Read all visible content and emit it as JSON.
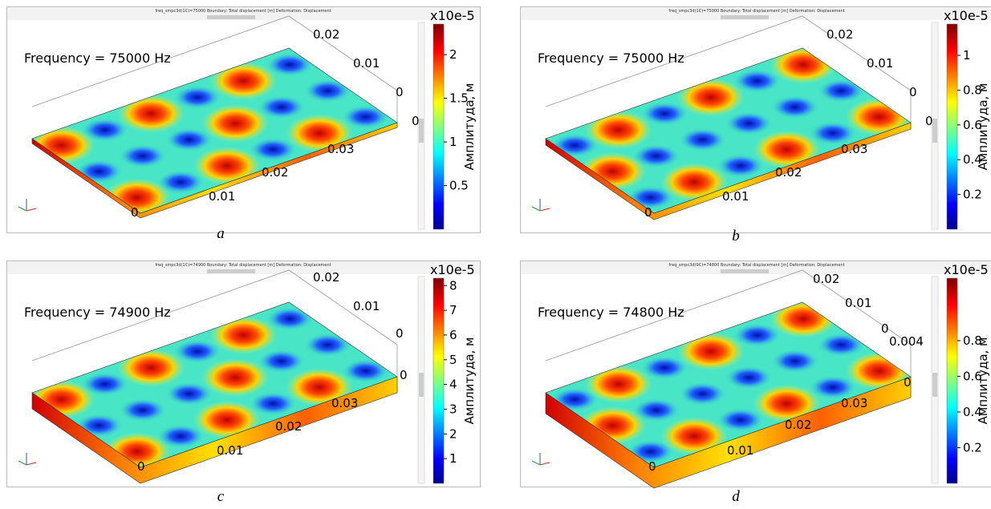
{
  "panels": [
    {
      "header": "freq_smpc3d(1C)=75000   Boundary: Total displacement [m]   Deformation: Displacement",
      "frequency": "Frequency = 75000 Hz",
      "multiplier": "x10e-5",
      "colorbar_label": "Амплитуда, м",
      "colorbar_ticks": [
        2,
        1.5,
        1,
        0.5
      ],
      "axis_ticks": [
        "0",
        "0.01",
        "0.02",
        "0.03",
        "0",
        "0",
        "0.01",
        "0.02"
      ],
      "caption": "a"
    },
    {
      "header": "freq_smpc3d(1C)=75000   Boundary: Total displacement [m]   Deformation: Displacement",
      "frequency": "Frequency = 75000 Hz",
      "multiplier": "x10e-5",
      "colorbar_label": "Амплитуда, м",
      "colorbar_ticks": [
        1,
        0.8,
        0.6,
        0.4,
        0.2
      ],
      "axis_ticks": [
        "0",
        "0.01",
        "0.02",
        "0.03",
        "0",
        "0",
        "0.01",
        "0.02"
      ],
      "caption": "b"
    },
    {
      "header": "freq_smpc3d(1C)=74900   Boundary: Total displacement [m]   Deformation: Displacement",
      "frequency": "Frequency = 74900 Hz",
      "multiplier": "x10e-5",
      "colorbar_label": "Амплитуда, м",
      "colorbar_ticks": [
        8,
        7,
        6,
        5,
        4,
        3,
        2,
        1
      ],
      "axis_ticks": [
        "0",
        "0.01",
        "0.02",
        "0.03",
        "0",
        "0",
        "0.01",
        "0.02"
      ],
      "caption": "c"
    },
    {
      "header": "freq_smpc3d(9C)=74800   Boundary: Total displacement [m]   Deformation: Displacement",
      "frequency": "Frequency = 74800 Hz",
      "multiplier": "x10e-5",
      "colorbar_label": "Амплитуда, м",
      "colorbar_ticks": [
        0.8,
        0.6,
        0.4,
        0.2
      ],
      "axis_ticks": [
        "0",
        "0.01",
        "0.02",
        "0.03",
        "0",
        "0.004",
        "0",
        "0.01",
        "0.02"
      ],
      "caption": "d"
    }
  ]
}
